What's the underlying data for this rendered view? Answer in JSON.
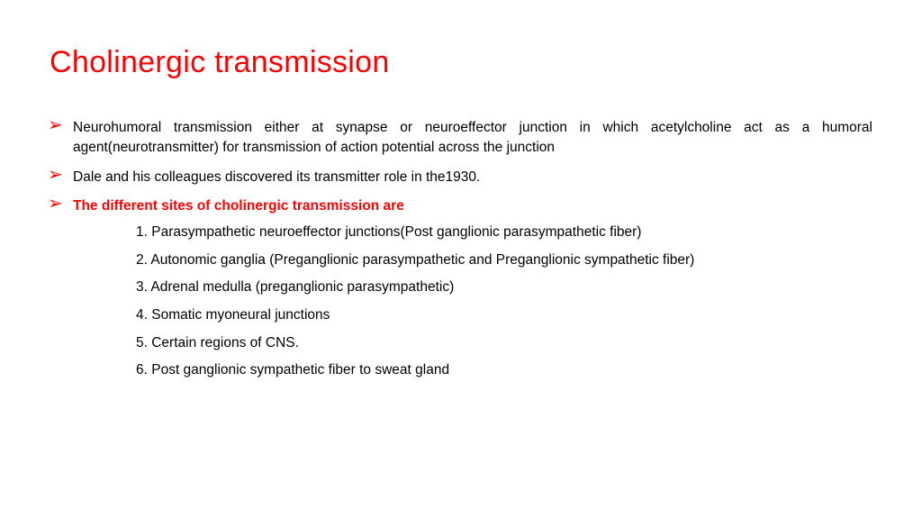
{
  "colors": {
    "accent": "#ff0000",
    "text": "#000000",
    "background": "#ffffff"
  },
  "title": "Cholinergic transmission",
  "bullets": [
    {
      "text": "Neurohumoral transmission either at synapse or neuroeffector junction in which acetylcholine act as a humoral agent(neurotransmitter) for transmission of action potential across the junction",
      "bold": false,
      "color": "#000000",
      "justify": true
    },
    {
      "text": "Dale and his colleagues discovered its transmitter role in the1930.",
      "bold": false,
      "color": "#000000",
      "justify": false
    },
    {
      "text": "The different sites of cholinergic transmission are",
      "bold": true,
      "color": "#ff0000",
      "justify": false
    }
  ],
  "sublist": [
    "1.  Parasympathetic neuroeffector junctions(Post ganglionic parasympathetic fiber)",
    "2. Autonomic ganglia (Preganglionic parasympathetic and Preganglionic sympathetic fiber)",
    "3. Adrenal medulla (preganglionic parasympathetic)",
    "4. Somatic myoneural junctions",
    "5. Certain regions of CNS.",
    "6. Post ganglionic sympathetic fiber to sweat gland"
  ],
  "typography": {
    "title_fontsize": 34,
    "body_fontsize": 15.5,
    "chevron_fontsize": 20
  }
}
